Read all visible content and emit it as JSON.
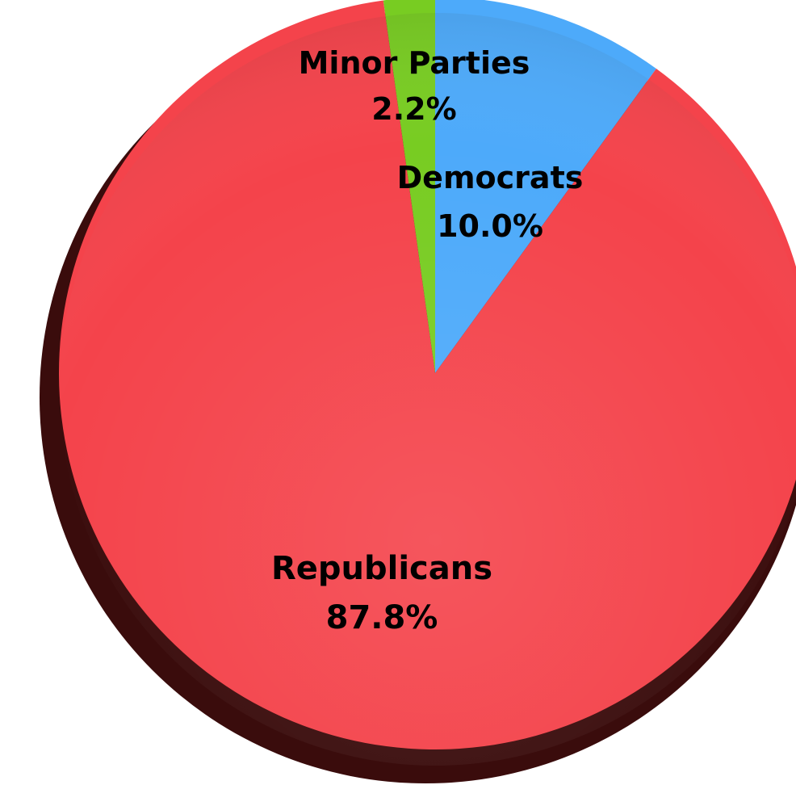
{
  "chart_data": {
    "type": "pie",
    "title": "",
    "slices": [
      {
        "label": "Democrats",
        "value": 10.0,
        "value_label": "10.0%",
        "color": "#4daafa"
      },
      {
        "label": "Republicans",
        "value": 87.8,
        "value_label": "87.8%",
        "color": "#f4434b"
      },
      {
        "label": "Minor Parties",
        "value": 2.2,
        "value_label": "2.2%",
        "color": "#78cc22"
      }
    ],
    "start_angle_deg": 0,
    "direction": "clockwise",
    "style": "3d-shaded",
    "legend": "none"
  }
}
